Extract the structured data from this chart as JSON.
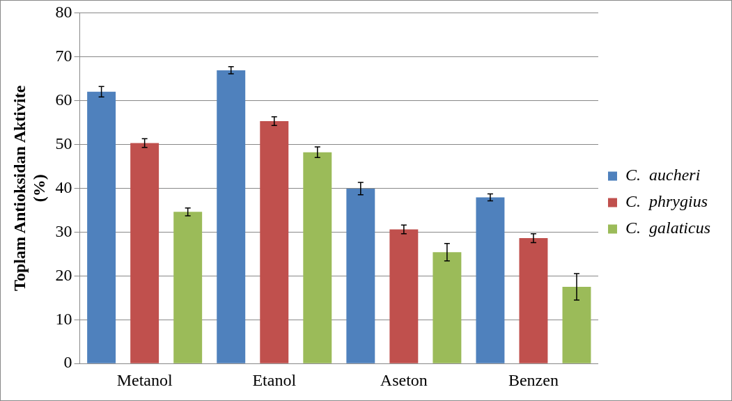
{
  "chart_data": {
    "type": "bar",
    "ylabel": "Toplam Antioksidan Aktivite (%)",
    "categories": [
      "Metanol",
      "Etanol",
      "Aseton",
      "Benzen"
    ],
    "series": [
      {
        "name": "C.  aucheri",
        "color": "#4f81bd",
        "values": [
          62.0,
          66.9,
          39.9,
          37.9
        ],
        "errors": [
          1.2,
          0.8,
          1.4,
          0.8
        ]
      },
      {
        "name": "C.  phrygius",
        "color": "#c0504d",
        "values": [
          50.3,
          55.3,
          30.6,
          28.6
        ],
        "errors": [
          1.0,
          1.0,
          1.0,
          1.0
        ]
      },
      {
        "name": "C.  galaticus",
        "color": "#9bbb59",
        "values": [
          34.6,
          48.2,
          25.4,
          17.5
        ],
        "errors": [
          0.9,
          1.2,
          2.0,
          3.0
        ]
      }
    ],
    "ylim": [
      0,
      80
    ],
    "yticks": [
      0,
      10,
      20,
      30,
      40,
      50,
      60,
      70,
      80
    ],
    "grid": "y",
    "legend": "right"
  }
}
